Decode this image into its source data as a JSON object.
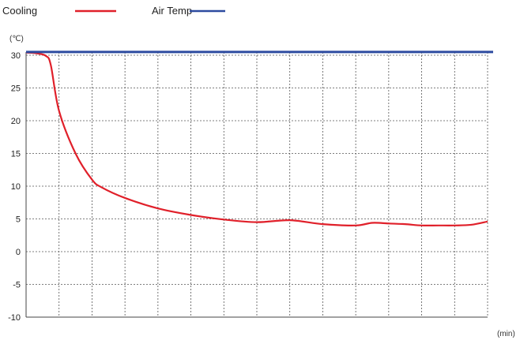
{
  "chart_data": {
    "type": "line",
    "xlabel": "(min)",
    "ylabel": "(℃)",
    "ylim": [
      -10,
      31
    ],
    "yticks": [
      30,
      25,
      20,
      15,
      10,
      5,
      0,
      -5,
      -10
    ],
    "ytick_labels": [
      "30",
      "25",
      "20",
      "15",
      "10",
      "5",
      "0",
      "-5",
      "-10"
    ],
    "xlim": [
      0,
      14
    ],
    "x_grid_divisions": 14,
    "grid": true,
    "legend_position": "top-left",
    "series": [
      {
        "name": "Cooling",
        "color": "#e0202a",
        "x": [
          0,
          0.3,
          0.6,
          0.75,
          1.0,
          1.5,
          2.0,
          2.3,
          3.0,
          4.0,
          5.0,
          6.0,
          7.0,
          8.0,
          9.0,
          10.0,
          10.5,
          11.0,
          11.5,
          12.0,
          12.5,
          13.0,
          13.5,
          14.0
        ],
        "y": [
          30.4,
          30.3,
          29.9,
          28.5,
          21.5,
          15.0,
          11.0,
          9.8,
          8.2,
          6.6,
          5.6,
          4.9,
          4.5,
          4.8,
          4.2,
          4.0,
          4.4,
          4.3,
          4.2,
          4.0,
          4.0,
          4.0,
          4.1,
          4.6
        ]
      },
      {
        "name": "Air Temp",
        "color": "#2d4ba0",
        "x": [
          0,
          14
        ],
        "y": [
          30.5,
          30.5
        ]
      }
    ]
  }
}
